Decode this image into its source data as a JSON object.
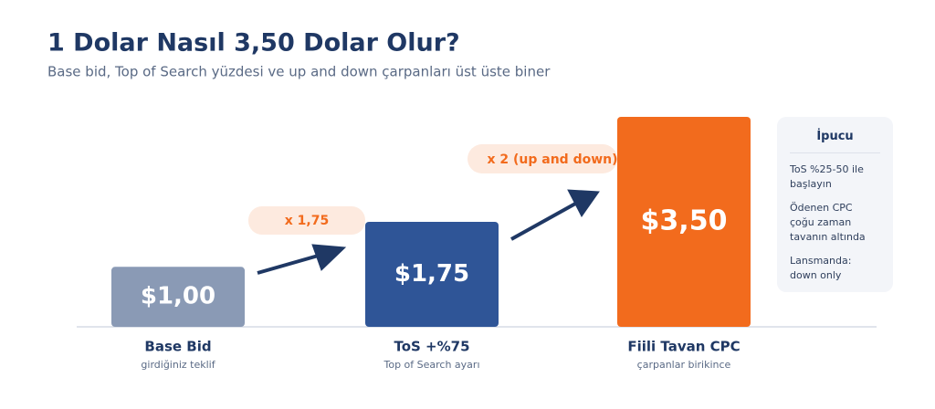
{
  "chart_data": {
    "type": "bar",
    "title": "1 Dolar Nasıl 3,50 Dolar Olur?",
    "subtitle": "Base bid, Top of Search yüzdesi ve up and down çarpanları üst üste biner",
    "categories": [
      "Base Bid",
      "ToS +%75",
      "Fiili Tavan CPC"
    ],
    "category_notes": [
      "girdiğiniz teklif",
      "Top of Search ayarı",
      "çarpanlar birikince"
    ],
    "values": [
      1,
      1.75,
      3.5
    ],
    "value_labels": [
      "$1,00",
      "$1,75",
      "$3,50"
    ],
    "colors": [
      "#8a9ab5",
      "#2f5597",
      "#f26b1d"
    ],
    "annotations": [
      "x 1,75",
      "x 2 (up and down)"
    ]
  },
  "tip": {
    "title": "İpucu",
    "items": [
      "ToS %25-50 ile başlayın",
      "Ödenen CPC çoğu zaman tavanın altında",
      "Lansmanda: down only"
    ]
  }
}
